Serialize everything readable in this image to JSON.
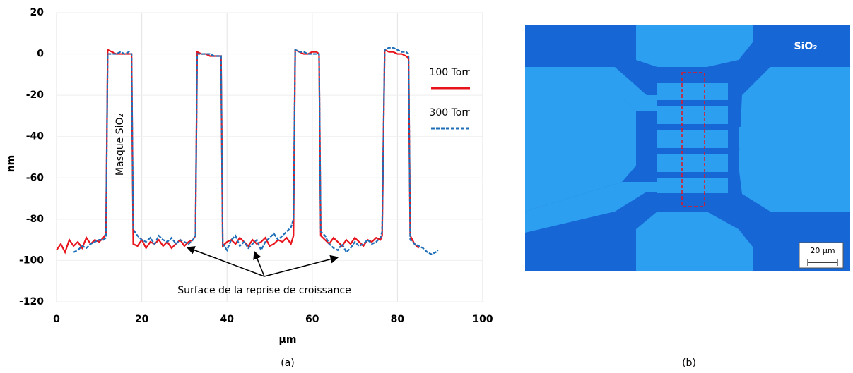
{
  "chart_data": {
    "type": "line",
    "x_label": "µm",
    "y_label": "nm",
    "caption": "(a)",
    "annotations": [
      "Masque SiO₂",
      "Surface de la reprise de croissance"
    ],
    "xlim": [
      0,
      100
    ],
    "xticks": [
      0,
      20,
      40,
      60,
      80,
      100
    ],
    "ylim": [
      -120,
      20
    ],
    "yticks": [
      -120,
      -100,
      -80,
      -60,
      -40,
      -20,
      0,
      20
    ],
    "grid": true,
    "legend": "right",
    "x": [
      0,
      1,
      2,
      3,
      4,
      5,
      6,
      7,
      8,
      9,
      10,
      11,
      11.6,
      12,
      13,
      14,
      15,
      16,
      17,
      17.6,
      18,
      19,
      20,
      21,
      22,
      23,
      24,
      25,
      26,
      27,
      28,
      29,
      30,
      31,
      32,
      32.6,
      33,
      34,
      35,
      36,
      37,
      38,
      38.6,
      39,
      40,
      41,
      42,
      43,
      44,
      45,
      46,
      47,
      48,
      49,
      50,
      51,
      52,
      53,
      54,
      55,
      55.6,
      56,
      57,
      58,
      59,
      60,
      61,
      61.6,
      62,
      63,
      64,
      65,
      66,
      67,
      68,
      69,
      70,
      71,
      72,
      73,
      74,
      75,
      76,
      76.4,
      77,
      78,
      79,
      80,
      81,
      82,
      82.6,
      83,
      84,
      85,
      86,
      87,
      88,
      89,
      89.5
    ],
    "series": [
      {
        "name": "100 Torr",
        "color": "#e8141c",
        "linestyle": "solid",
        "values": [
          -95,
          -92,
          -96,
          -90,
          -93,
          -91,
          -94,
          -89,
          -92,
          -90,
          -91,
          -89,
          -87,
          2,
          1,
          0,
          0,
          0,
          0,
          0,
          -92,
          -93,
          -90,
          -94,
          -91,
          -92,
          -90,
          -93,
          -91,
          -94,
          -92,
          -90,
          -93,
          -91,
          -90,
          -88,
          1,
          0,
          0,
          -1,
          -1,
          -1,
          -1,
          -93,
          -91,
          -90,
          -92,
          -89,
          -91,
          -93,
          -90,
          -92,
          -91,
          -89,
          -93,
          -92,
          -90,
          -91,
          -89,
          -92,
          -88,
          2,
          1,
          0,
          0,
          1,
          1,
          0,
          -88,
          -90,
          -92,
          -89,
          -91,
          -93,
          -90,
          -92,
          -89,
          -91,
          -93,
          -90,
          -91,
          -89,
          -90,
          -88,
          2,
          1,
          1,
          0,
          0,
          -1,
          -2,
          -88,
          -92,
          -94,
          null,
          null,
          null,
          null,
          null
        ]
      },
      {
        "name": "300 Torr",
        "color": "#1f6fb8",
        "linestyle": "dashed",
        "values": [
          null,
          null,
          null,
          null,
          -96,
          -95,
          -93,
          -94,
          -92,
          -91,
          -90,
          -90,
          -89,
          0,
          0,
          0,
          1,
          0,
          1,
          0,
          -85,
          -88,
          -90,
          -91,
          -89,
          -92,
          -88,
          -90,
          -91,
          -89,
          -92,
          -90,
          -91,
          -92,
          -90,
          -88,
          0,
          0,
          0,
          0,
          -1,
          -1,
          -1,
          -92,
          -95,
          -90,
          -88,
          -93,
          -91,
          -94,
          -92,
          -90,
          -95,
          -91,
          -89,
          -87,
          -90,
          -88,
          -86,
          -84,
          -80,
          2,
          1,
          1,
          0,
          0,
          0,
          0,
          -86,
          -88,
          -92,
          -94,
          -95,
          -92,
          -96,
          -94,
          -91,
          -93,
          -92,
          -90,
          -92,
          -91,
          -89,
          -86,
          2,
          3,
          3,
          2,
          1,
          1,
          0,
          -90,
          -92,
          -93,
          -94,
          -96,
          -97,
          -96,
          -95
        ]
      }
    ]
  },
  "image": {
    "label": "SiO₂",
    "scale_bar": "20 µm",
    "caption": "(b)"
  }
}
